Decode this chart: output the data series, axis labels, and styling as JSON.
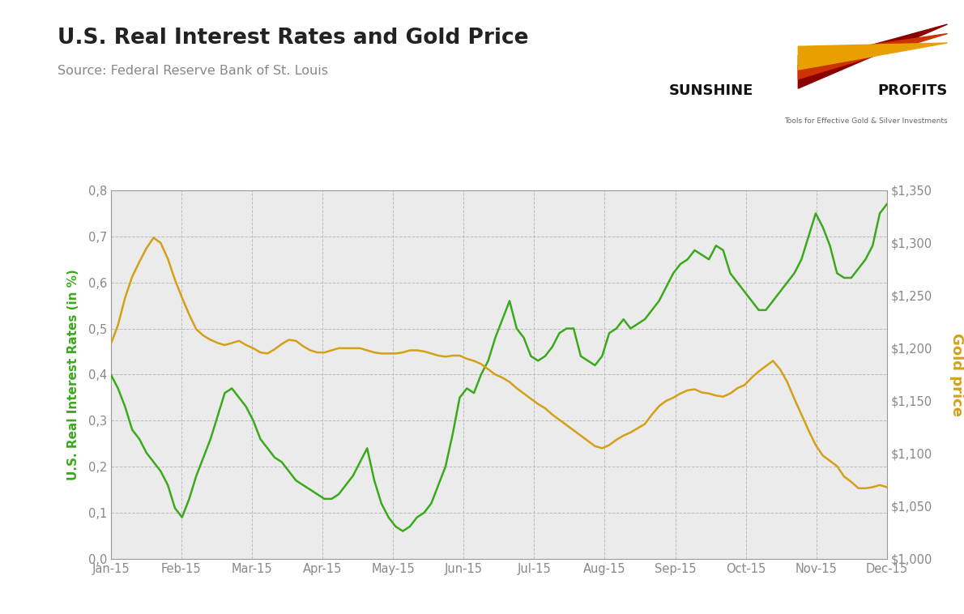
{
  "title": "U.S. Real Interest Rates and Gold Price",
  "source": "Source: Federal Reserve Bank of St. Louis",
  "ylabel_left": "U.S. Real Interest Rates (in %)",
  "ylabel_right": "Gold price",
  "left_color": "#3AAA1C",
  "right_color": "#D4A017",
  "background_color": "#EBEBEB",
  "outer_background": "#FFFFFF",
  "ylim_left": [
    0.0,
    0.8
  ],
  "ylim_right": [
    1000,
    1350
  ],
  "yticks_left": [
    0.0,
    0.1,
    0.2,
    0.3,
    0.4,
    0.5,
    0.6,
    0.7,
    0.8
  ],
  "ytick_labels_left": [
    "0,0",
    "0,1",
    "0,2",
    "0,3",
    "0,4",
    "0,5",
    "0,6",
    "0,7",
    "0,8"
  ],
  "yticks_right": [
    1000,
    1050,
    1100,
    1150,
    1200,
    1250,
    1300,
    1350
  ],
  "ytick_labels_right": [
    "$1,000",
    "$1,050",
    "$1,100",
    "$1,150",
    "$1,200",
    "$1,250",
    "$1,300",
    "$1,350"
  ],
  "xtick_labels": [
    "Jan-15",
    "Feb-15",
    "Mar-15",
    "Apr-15",
    "May-15",
    "Jun-15",
    "Jul-15",
    "Aug-15",
    "Sep-15",
    "Oct-15",
    "Nov-15",
    "Dec-15"
  ],
  "n_points": 110,
  "green_y": [
    0.4,
    0.37,
    0.33,
    0.28,
    0.26,
    0.23,
    0.21,
    0.19,
    0.16,
    0.11,
    0.09,
    0.13,
    0.18,
    0.22,
    0.26,
    0.31,
    0.36,
    0.37,
    0.35,
    0.33,
    0.3,
    0.26,
    0.24,
    0.22,
    0.21,
    0.19,
    0.17,
    0.16,
    0.15,
    0.14,
    0.13,
    0.13,
    0.14,
    0.16,
    0.18,
    0.21,
    0.24,
    0.17,
    0.12,
    0.09,
    0.07,
    0.06,
    0.07,
    0.09,
    0.1,
    0.12,
    0.16,
    0.2,
    0.27,
    0.35,
    0.37,
    0.36,
    0.4,
    0.43,
    0.48,
    0.52,
    0.56,
    0.5,
    0.48,
    0.44,
    0.43,
    0.44,
    0.46,
    0.49,
    0.5,
    0.5,
    0.44,
    0.43,
    0.42,
    0.44,
    0.49,
    0.5,
    0.52,
    0.5,
    0.51,
    0.52,
    0.54,
    0.56,
    0.59,
    0.62,
    0.64,
    0.65,
    0.67,
    0.66,
    0.65,
    0.68,
    0.67,
    0.62,
    0.6,
    0.58,
    0.56,
    0.54,
    0.54,
    0.56,
    0.58,
    0.6,
    0.62,
    0.65,
    0.7,
    0.75,
    0.72,
    0.68,
    0.62,
    0.61,
    0.61,
    0.63,
    0.65,
    0.68,
    0.75,
    0.77
  ],
  "gold_y": [
    1204,
    1222,
    1248,
    1268,
    1282,
    1295,
    1305,
    1300,
    1285,
    1265,
    1248,
    1232,
    1218,
    1212,
    1208,
    1205,
    1203,
    1205,
    1207,
    1203,
    1200,
    1196,
    1195,
    1199,
    1204,
    1208,
    1207,
    1202,
    1198,
    1196,
    1196,
    1198,
    1200,
    1200,
    1200,
    1200,
    1198,
    1196,
    1195,
    1195,
    1195,
    1196,
    1198,
    1198,
    1197,
    1195,
    1193,
    1192,
    1193,
    1193,
    1190,
    1188,
    1185,
    1180,
    1175,
    1172,
    1168,
    1162,
    1157,
    1152,
    1147,
    1143,
    1137,
    1132,
    1127,
    1122,
    1117,
    1112,
    1107,
    1105,
    1108,
    1113,
    1117,
    1120,
    1124,
    1128,
    1137,
    1145,
    1150,
    1153,
    1157,
    1160,
    1161,
    1158,
    1157,
    1155,
    1154,
    1157,
    1162,
    1165,
    1172,
    1178,
    1183,
    1188,
    1180,
    1168,
    1152,
    1137,
    1122,
    1108,
    1098,
    1093,
    1088,
    1078,
    1073,
    1067,
    1067,
    1068,
    1070,
    1068
  ]
}
